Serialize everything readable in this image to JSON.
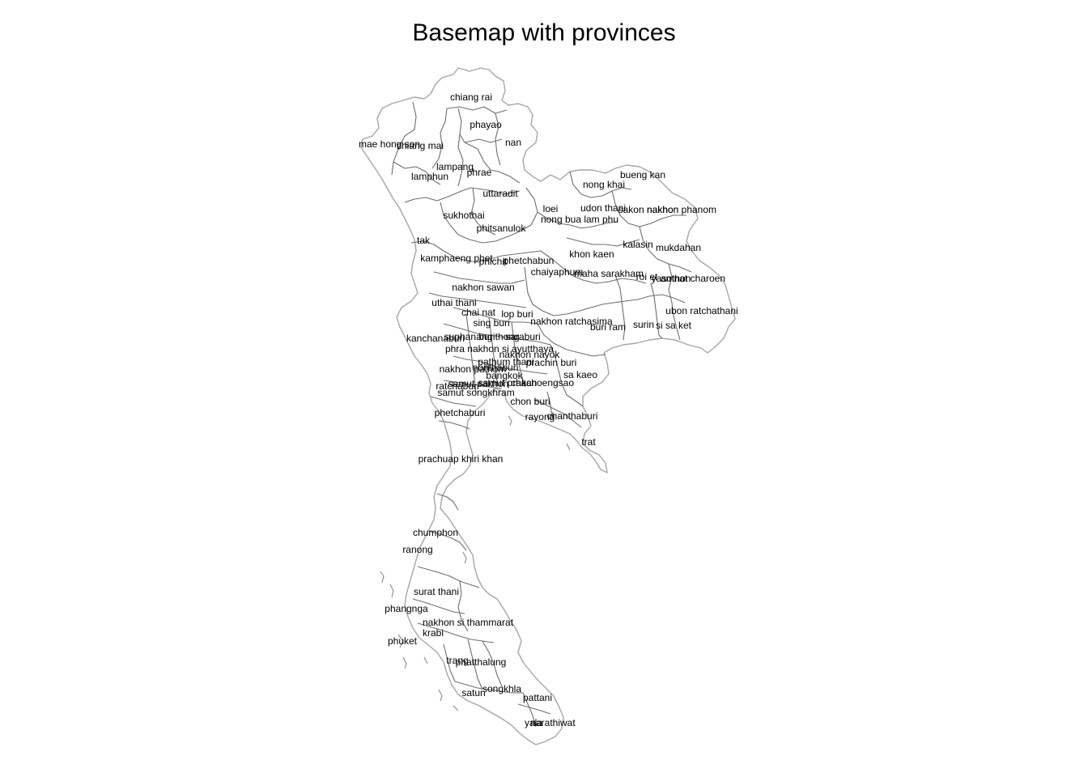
{
  "map": {
    "title": "Basemap with provinces",
    "colors": {
      "outline": "#a6a6a6",
      "borders": "#6e6e6e",
      "labels": "#000000",
      "background": "#ffffff"
    },
    "provinces": [
      "chiang rai",
      "phayao",
      "nan",
      "mae hong son",
      "chiang mai",
      "lampang",
      "phrae",
      "lamphun",
      "bueng kan",
      "nong khai",
      "uttaradit",
      "loei",
      "udon thani",
      "sakon nakhon",
      "nakhon phanom",
      "nong bua lam phu",
      "sukhothai",
      "phitsanulok",
      "kalasin",
      "mukdahan",
      "tak",
      "khon kaen",
      "kamphaeng phet",
      "phichit",
      "phetchabun",
      "chaiyaphum",
      "maha sarakham",
      "roi et",
      "yasothon",
      "amnat charoen",
      "nakhon sawan",
      "uthai thani",
      "ubon ratchathani",
      "chai nat",
      "lop buri",
      "sing buri",
      "nakhon ratchasima",
      "buri ram",
      "surin",
      "si sa ket",
      "suphan buri",
      "ang thong",
      "saraburi",
      "kanchanaburi",
      "phra nakhon si ayutthaya",
      "nakhon nayok",
      "pathum thani",
      "prachin buri",
      "nakhon pathom",
      "nonthaburi",
      "bangkok",
      "sa kaeo",
      "samut sakhon",
      "samut prakan",
      "chachoengsao",
      "ratchaburi",
      "samut songkhram",
      "chon buri",
      "phetchaburi",
      "rayong",
      "chanthaburi",
      "trat",
      "prachuap khiri khan",
      "chumphon",
      "ranong",
      "surat thani",
      "phangnga",
      "nakhon si thammarat",
      "krabi",
      "phuket",
      "trang",
      "phatthalung",
      "songkhla",
      "satun",
      "pattani",
      "yala",
      "narathiwat"
    ]
  }
}
